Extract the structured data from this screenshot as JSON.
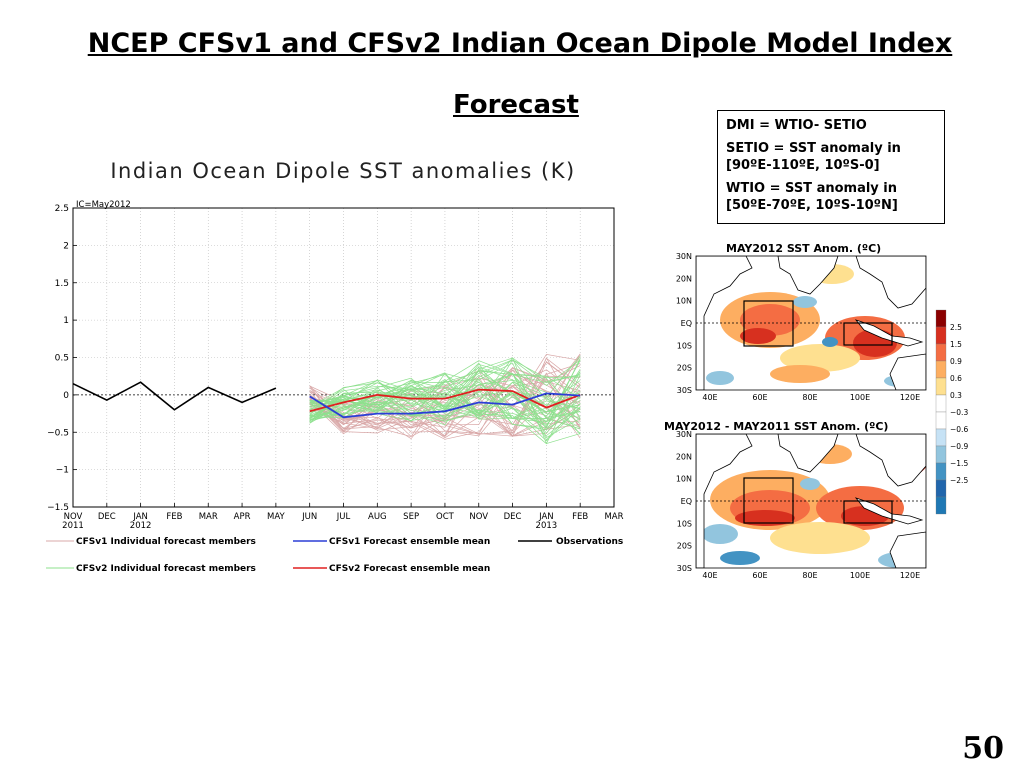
{
  "slide": {
    "title_line1": "NCEP CFSv1 and CFSv2 Indian Ocean Dipole Model Index",
    "title_line2": "Forecast",
    "page_number": "50"
  },
  "definitions": {
    "line1": "DMI = WTIO- SETIO",
    "line2a": "SETIO = SST anomaly in",
    "line2b": "[90ºE-110ºE, 10ºS-0]",
    "line3a": "WTIO = SST anomaly in",
    "line3b": "[50ºE-70ºE, 10ºS-10ºN]"
  },
  "chart_data": {
    "type": "line",
    "title": "Indian Ocean Dipole SST anomalies (K)",
    "ic_label": "IC=May2012",
    "ylim": [
      -1.5,
      2.5
    ],
    "yticks": [
      "2.5",
      "2",
      "1.5",
      "1",
      "0.5",
      "0",
      "−0.5",
      "−1",
      "−1.5"
    ],
    "ytick_values": [
      2.5,
      2,
      1.5,
      1,
      0.5,
      0,
      -0.5,
      -1,
      -1.5
    ],
    "x_ticks": [
      {
        "l1": "NOV",
        "l2": "2011"
      },
      {
        "l1": "DEC",
        "l2": ""
      },
      {
        "l1": "JAN",
        "l2": "2012"
      },
      {
        "l1": "FEB",
        "l2": ""
      },
      {
        "l1": "MAR",
        "l2": ""
      },
      {
        "l1": "APR",
        "l2": ""
      },
      {
        "l1": "MAY",
        "l2": ""
      },
      {
        "l1": "JUN",
        "l2": ""
      },
      {
        "l1": "JUL",
        "l2": ""
      },
      {
        "l1": "AUG",
        "l2": ""
      },
      {
        "l1": "SEP",
        "l2": ""
      },
      {
        "l1": "OCT",
        "l2": ""
      },
      {
        "l1": "NOV",
        "l2": ""
      },
      {
        "l1": "DEC",
        "l2": ""
      },
      {
        "l1": "JAN",
        "l2": "2013"
      },
      {
        "l1": "FEB",
        "l2": ""
      },
      {
        "l1": "MAR",
        "l2": ""
      }
    ],
    "observations": {
      "name": "Observations",
      "color": "#000000",
      "x": [
        0,
        1,
        2,
        3,
        4,
        5,
        6
      ],
      "values": [
        0.15,
        -0.07,
        0.17,
        -0.2,
        0.1,
        -0.1,
        0.09
      ]
    },
    "cfsv1_mean": {
      "name": "CFSv1 Forecast ensemble mean",
      "color": "#2b3fd6",
      "x": [
        7,
        8,
        9,
        10,
        11,
        12,
        13,
        14,
        15
      ],
      "values": [
        -0.02,
        -0.3,
        -0.25,
        -0.25,
        -0.22,
        -0.1,
        -0.13,
        0.02,
        -0.01
      ]
    },
    "cfsv2_mean": {
      "name": "CFSv2 Forecast ensemble mean",
      "color": "#e02020",
      "x": [
        7,
        8,
        9,
        10,
        11,
        12,
        13,
        14,
        15
      ],
      "values": [
        -0.22,
        -0.1,
        0.0,
        -0.05,
        -0.05,
        0.07,
        0.05,
        -0.17,
        0.0
      ]
    },
    "cfsv1_members_label": "CFSv1 Individual forecast members",
    "cfsv2_members_label": "CFSv2 Individual forecast members",
    "cfsv1_member_color": "#d9a8a8",
    "cfsv2_member_color": "#8ee08e",
    "grid": true
  },
  "maps": {
    "top_title": "MAY2012 SST Anom. (ºC)",
    "bottom_title": "MAY2012 - MAY2011 SST Anom. (ºC)",
    "lat_labels": [
      "30N",
      "20N",
      "10N",
      "EQ",
      "10S",
      "20S",
      "30S"
    ],
    "lon_labels": [
      "40E",
      "60E",
      "80E",
      "100E",
      "120E"
    ],
    "colorbar_labels": [
      "2.5",
      "1.5",
      "0.9",
      "0.6",
      "0.3",
      "−0.3",
      "−0.6",
      "−0.9",
      "−1.5",
      "−2.5"
    ],
    "colorbar_colors": [
      "#8b0000",
      "#d7301f",
      "#f46d43",
      "#fdae61",
      "#fee090",
      "#ffffff",
      "#ffffff",
      "#c6e2f5",
      "#92c5de",
      "#4393c3",
      "#2166ac",
      "#1f78b4"
    ]
  }
}
